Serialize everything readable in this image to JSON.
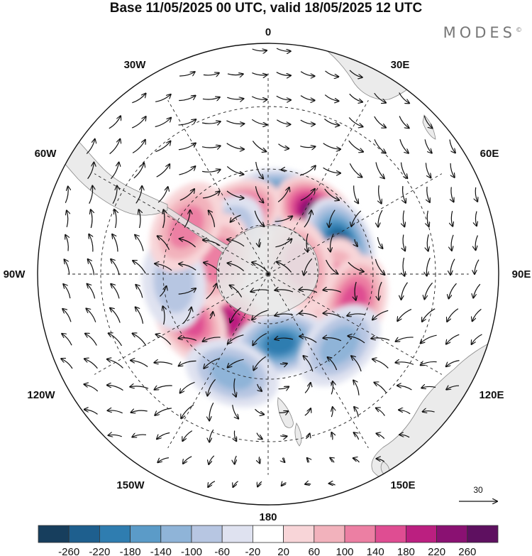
{
  "title": "Base 11/05/2025 00 UTC, valid 18/05/2025 12 UTC",
  "brand": "MODES",
  "brand_mark": "©",
  "map": {
    "projection": "south-polar-stereographic",
    "longitude_labels": {
      "n": "0",
      "ne30": "30E",
      "ne60": "60E",
      "e": "90E",
      "se120": "120E",
      "se150": "150E",
      "s": "180",
      "sw150": "150W",
      "sw120": "120W",
      "w": "90W",
      "nw60": "60W",
      "nw30": "30W"
    },
    "colors": {
      "land": "#e6e6e6",
      "coast": "#888888",
      "grid": "#222222"
    },
    "anomaly_centers": [
      {
        "lon": 10,
        "lat": -48,
        "value": -240
      },
      {
        "lon": 40,
        "lat": -47,
        "value": 270
      },
      {
        "lon": 67,
        "lat": -46,
        "value": -220
      },
      {
        "lon": -28,
        "lat": -52,
        "value": 200
      },
      {
        "lon": -50,
        "lat": -57,
        "value": -90
      },
      {
        "lon": 100,
        "lat": -52,
        "value": 90
      },
      {
        "lon": 108,
        "lat": -40,
        "value": 140
      },
      {
        "lon": -100,
        "lat": -55,
        "value": -170
      },
      {
        "lon": -140,
        "lat": -55,
        "value": 170
      },
      {
        "lon": -120,
        "lat": -40,
        "value": 140
      },
      {
        "lon": 170,
        "lat": -50,
        "value": -200
      },
      {
        "lon": -160,
        "lat": -33,
        "value": -120
      },
      {
        "lon": 135,
        "lat": -35,
        "value": -120
      },
      {
        "lon": 75,
        "lat": -70,
        "value": 120
      },
      {
        "lon": -75,
        "lat": -60,
        "value": 90
      },
      {
        "lon": -95,
        "lat": -38,
        "value": -60
      },
      {
        "lon": -60,
        "lat": -38,
        "value": 90
      }
    ]
  },
  "vector_reference": {
    "label": "30"
  },
  "colorbar": {
    "ticks": [
      "-260",
      "-220",
      "-180",
      "-140",
      "-100",
      "-60",
      "-20",
      "20",
      "60",
      "100",
      "140",
      "180",
      "220",
      "260"
    ],
    "colors": [
      "#173e5d",
      "#1e5f8e",
      "#2f7db0",
      "#5b9bc8",
      "#8fb4d8",
      "#b7c6e2",
      "#dfe2f0",
      "#ffffff",
      "#f8d5d8",
      "#f2b2bc",
      "#ec7fa3",
      "#df4d92",
      "#bb1f80",
      "#8a1172",
      "#5e1060"
    ]
  }
}
